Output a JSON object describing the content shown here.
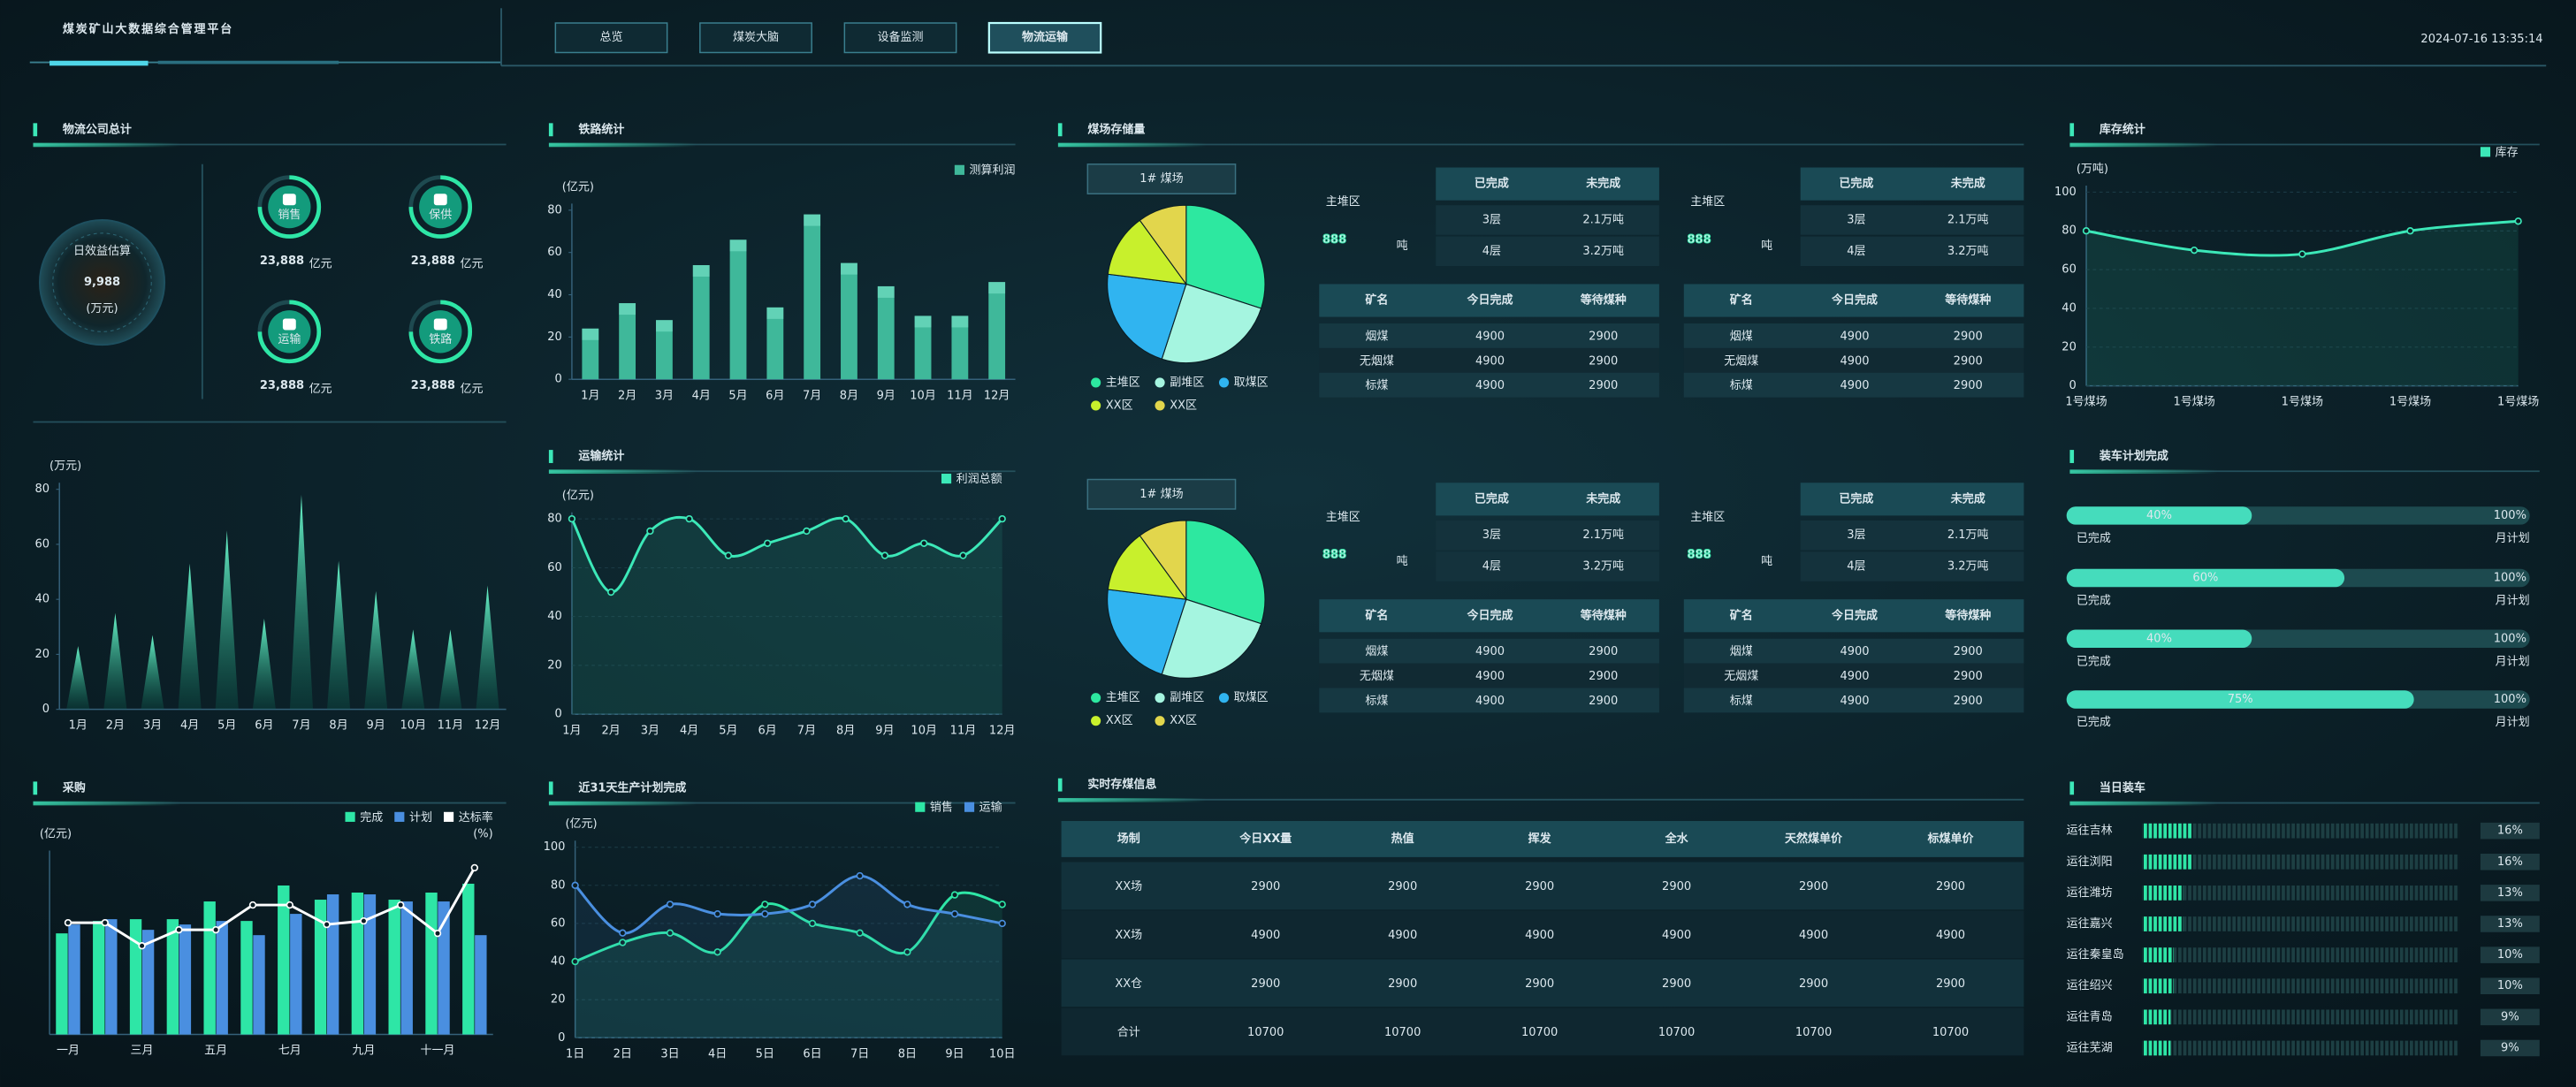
{
  "header": {
    "title": "煤炭矿山大数据综合管理平台",
    "nav": [
      "总览",
      "煤炭大脑",
      "设备监测",
      "物流运输"
    ],
    "active": 3,
    "datetime": "2024-07-16 13:35:14"
  },
  "logistics": {
    "title": "物流公司总计",
    "summary": {
      "label": "日效益估算",
      "value": "9,988",
      "unit": "(万元)"
    },
    "items": [
      {
        "name": "销售",
        "value": "23,888",
        "unit": "亿元"
      },
      {
        "name": "保供",
        "value": "23,888",
        "unit": "亿元"
      },
      {
        "name": "运输",
        "value": "23,888",
        "unit": "亿元"
      },
      {
        "name": "铁路",
        "value": "23,888",
        "unit": "亿元"
      }
    ]
  },
  "chart_data": [
    {
      "type": "bar",
      "bar_shape": "cone",
      "ylabel": "(万元)",
      "categories": [
        "1月",
        "2月",
        "3月",
        "4月",
        "5月",
        "6月",
        "7月",
        "8月",
        "9月",
        "10月",
        "11月",
        "12月"
      ],
      "values": [
        23,
        35,
        27,
        53,
        65,
        33,
        78,
        54,
        43,
        29,
        29,
        45
      ],
      "color": "#2ee6a6",
      "ylim": [
        0,
        80
      ],
      "yticks": [
        0,
        20,
        40,
        60,
        80
      ],
      "grid": false
    },
    {
      "type": "bar",
      "title": "铁路统计",
      "ylabel": "(亿元)",
      "legend": "top-right",
      "categories": [
        "1月",
        "2月",
        "3月",
        "4月",
        "5月",
        "6月",
        "7月",
        "8月",
        "9月",
        "10月",
        "11月",
        "12月"
      ],
      "series": [
        {
          "name": "测算利润",
          "color": "#3fb89a",
          "values": [
            24,
            36,
            28,
            54,
            66,
            34,
            78,
            55,
            44,
            30,
            30,
            46
          ]
        }
      ],
      "ylim": [
        0,
        80
      ],
      "yticks": [
        0,
        20,
        40,
        60,
        80
      ],
      "grid": false
    },
    {
      "type": "line",
      "title": "运输统计",
      "ylabel": "(亿元)",
      "legend": "top-right",
      "smooth": true,
      "area": true,
      "categories": [
        "1月",
        "2月",
        "3月",
        "4月",
        "5月",
        "6月",
        "7月",
        "8月",
        "9月",
        "10月",
        "11月",
        "12月"
      ],
      "series": [
        {
          "name": "利润总额",
          "color": "#3ce8b8",
          "values": [
            80,
            50,
            75,
            80,
            65,
            70,
            75,
            80,
            65,
            70,
            65,
            80
          ]
        }
      ],
      "ylim": [
        0,
        80
      ],
      "yticks": [
        0,
        20,
        40,
        60,
        80
      ],
      "grid": true
    },
    {
      "type": "line",
      "title": "库存统计",
      "ylabel": "(万吨)",
      "legend": "top-right",
      "smooth": true,
      "area": true,
      "categories": [
        "1号煤场",
        "1号煤场",
        "1号煤场",
        "1号煤场",
        "1号煤场"
      ],
      "series": [
        {
          "name": "库存",
          "color": "#3ce8b8",
          "values": [
            80,
            70,
            68,
            80,
            85
          ]
        }
      ],
      "ylim": [
        0,
        100
      ],
      "yticks": [
        0,
        20,
        40,
        60,
        80,
        100
      ],
      "grid": true
    },
    {
      "type": "bar",
      "title": "采购",
      "ylabel": "(亿元)",
      "y2label": "(%)",
      "legend": "top-right",
      "categories": [
        "一月",
        null,
        "三月",
        null,
        "五月",
        null,
        "七月",
        null,
        "九月",
        null,
        "十一月",
        null
      ],
      "series": [
        {
          "name": "完成",
          "color": "#2ee6a6",
          "values": [
            57,
            64,
            65,
            65,
            75,
            64,
            84,
            76,
            80,
            76,
            80,
            85
          ]
        },
        {
          "name": "计划",
          "color": "#4a8fe0",
          "values": [
            62,
            65,
            59,
            62,
            64,
            56,
            68,
            79,
            79,
            75,
            75,
            56
          ]
        },
        {
          "name": "达标率",
          "type": "line",
          "axis": "y2",
          "color": "#ffffff",
          "values": [
            63,
            63,
            50,
            59,
            59,
            73,
            73,
            62,
            64,
            73,
            57,
            94
          ]
        }
      ],
      "ylim": [
        0,
        100
      ],
      "y2lim": [
        0,
        100
      ],
      "grid": false
    },
    {
      "type": "line",
      "title": "近31天生产计划完成",
      "ylabel": "(亿元)",
      "legend": "top-right",
      "smooth": true,
      "area": true,
      "categories": [
        "1日",
        "2日",
        "3日",
        "4日",
        "5日",
        "6日",
        "7日",
        "8日",
        "9日",
        "10日"
      ],
      "series": [
        {
          "name": "销售",
          "color": "#2ee6a6",
          "values": [
            40,
            50,
            55,
            45,
            70,
            60,
            55,
            45,
            75,
            70
          ]
        },
        {
          "name": "运输",
          "color": "#4a8fe0",
          "values": [
            80,
            55,
            70,
            65,
            65,
            70,
            85,
            70,
            65,
            60
          ]
        }
      ],
      "ylim": [
        0,
        100
      ],
      "yticks": [
        0,
        20,
        40,
        60,
        80,
        100
      ],
      "grid": true
    }
  ],
  "storage": {
    "title": "煤场存储量",
    "rows": [
      {
        "pie": {
          "type": "pie",
          "title": "1# 煤场",
          "categories": [
            "主堆区",
            "副堆区",
            "取煤区",
            "XX区",
            "XX区"
          ],
          "values": [
            30,
            25,
            22,
            13,
            10
          ],
          "colors": [
            "#2de8a0",
            "#a5f5e0",
            "#30b4f0",
            "#c8f02c",
            "#e2d64c"
          ]
        },
        "blocks": [
          {
            "area": "主堆区",
            "amount": 888,
            "unit": "吨",
            "summary": {
              "columns": [
                "已完成",
                "未完成"
              ],
              "rows": [
                [
                  "3层",
                  "2.1万吨"
                ],
                [
                  "4层",
                  "3.2万吨"
                ]
              ]
            },
            "table": {
              "columns": [
                "矿名",
                "今日完成",
                "等待煤种"
              ],
              "rows": [
                [
                  "烟煤",
                  4900,
                  2900
                ],
                [
                  "无烟煤",
                  4900,
                  2900
                ],
                [
                  "标煤",
                  4900,
                  2900
                ]
              ]
            }
          },
          {
            "area": "主堆区",
            "amount": 888,
            "unit": "吨",
            "summary": {
              "columns": [
                "已完成",
                "未完成"
              ],
              "rows": [
                [
                  "3层",
                  "2.1万吨"
                ],
                [
                  "4层",
                  "3.2万吨"
                ]
              ]
            },
            "table": {
              "columns": [
                "矿名",
                "今日完成",
                "等待煤种"
              ],
              "rows": [
                [
                  "烟煤",
                  4900,
                  2900
                ],
                [
                  "无烟煤",
                  4900,
                  2900
                ],
                [
                  "标煤",
                  4900,
                  2900
                ]
              ]
            }
          }
        ]
      },
      {
        "pie": {
          "type": "pie",
          "title": "1# 煤场",
          "categories": [
            "主堆区",
            "副堆区",
            "取煤区",
            "XX区",
            "XX区"
          ],
          "values": [
            30,
            25,
            22,
            13,
            10
          ],
          "colors": [
            "#2de8a0",
            "#a5f5e0",
            "#30b4f0",
            "#c8f02c",
            "#e2d64c"
          ]
        },
        "blocks": [
          {
            "area": "主堆区",
            "amount": 888,
            "unit": "吨",
            "summary": {
              "columns": [
                "已完成",
                "未完成"
              ],
              "rows": [
                [
                  "3层",
                  "2.1万吨"
                ],
                [
                  "4层",
                  "3.2万吨"
                ]
              ]
            },
            "table": {
              "columns": [
                "矿名",
                "今日完成",
                "等待煤种"
              ],
              "rows": [
                [
                  "烟煤",
                  4900,
                  2900
                ],
                [
                  "无烟煤",
                  4900,
                  2900
                ],
                [
                  "标煤",
                  4900,
                  2900
                ]
              ]
            }
          },
          {
            "area": "主堆区",
            "amount": 888,
            "unit": "吨",
            "summary": {
              "columns": [
                "已完成",
                "未完成"
              ],
              "rows": [
                [
                  "3层",
                  "2.1万吨"
                ],
                [
                  "4层",
                  "3.2万吨"
                ]
              ]
            },
            "table": {
              "columns": [
                "矿名",
                "今日完成",
                "等待煤种"
              ],
              "rows": [
                [
                  "烟煤",
                  4900,
                  2900
                ],
                [
                  "无烟煤",
                  4900,
                  2900
                ],
                [
                  "标煤",
                  4900,
                  2900
                ]
              ]
            }
          }
        ]
      }
    ]
  },
  "realtime": {
    "title": "实时存煤信息",
    "columns": [
      "场制",
      "今日XX量",
      "热值",
      "挥发",
      "全水",
      "天然煤单价",
      "标煤单价"
    ],
    "rows": [
      [
        "XX场",
        2900,
        2900,
        2900,
        2900,
        2900,
        2900
      ],
      [
        "XX场",
        4900,
        4900,
        4900,
        4900,
        4900,
        4900
      ],
      [
        "XX仓",
        2900,
        2900,
        2900,
        2900,
        2900,
        2900
      ],
      [
        "合计",
        10700,
        10700,
        10700,
        10700,
        10700,
        10700
      ]
    ]
  },
  "loading_plan": {
    "title": "装车计划完成",
    "items": [
      {
        "value": 40,
        "value_label": "40%",
        "max": 100,
        "max_label": "100%",
        "done": "已完成",
        "plan": "月计划"
      },
      {
        "value": 60,
        "value_label": "60%",
        "max": 100,
        "max_label": "100%",
        "done": "已完成",
        "plan": "月计划"
      },
      {
        "value": 40,
        "value_label": "40%",
        "max": 100,
        "max_label": "100%",
        "done": "已完成",
        "plan": "月计划"
      },
      {
        "value": 75,
        "value_label": "75%",
        "max": 100,
        "max_label": "100%",
        "done": "已完成",
        "plan": "月计划"
      }
    ]
  },
  "daily_loading": {
    "title": "当日装车",
    "max": 100,
    "items": [
      {
        "name": "运往吉林",
        "value": 16,
        "value_label": "16%"
      },
      {
        "name": "运往浏阳",
        "value": 16,
        "value_label": "16%"
      },
      {
        "name": "运往潍坊",
        "value": 13,
        "value_label": "13%"
      },
      {
        "name": "运往嘉兴",
        "value": 13,
        "value_label": "13%"
      },
      {
        "name": "运往秦皇岛",
        "value": 10,
        "value_label": "10%"
      },
      {
        "name": "运往绍兴",
        "value": 10,
        "value_label": "10%"
      },
      {
        "name": "运往青岛",
        "value": 9,
        "value_label": "9%"
      },
      {
        "name": "运往芜湖",
        "value": 9,
        "value_label": "9%"
      }
    ]
  }
}
